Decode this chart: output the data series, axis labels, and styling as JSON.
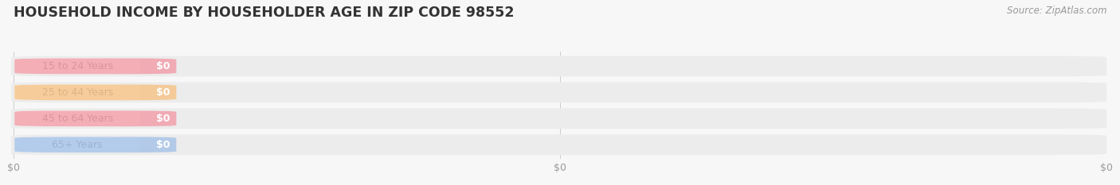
{
  "title": "HOUSEHOLD INCOME BY HOUSEHOLDER AGE IN ZIP CODE 98552",
  "source": "Source: ZipAtlas.com",
  "categories": [
    "15 to 24 Years",
    "25 to 44 Years",
    "45 to 64 Years",
    "65+ Years"
  ],
  "values": [
    0,
    0,
    0,
    0
  ],
  "bar_colors": [
    "#f2a0aa",
    "#f5c48a",
    "#f2a0aa",
    "#a8c4e8"
  ],
  "background_color": "#f7f7f7",
  "row_bg_color": "#ececec",
  "row_bg_light": "#f2f2f2",
  "title_fontsize": 12.5,
  "source_fontsize": 8.5,
  "tick_fontsize": 9,
  "cat_fontsize": 9,
  "val_fontsize": 9
}
